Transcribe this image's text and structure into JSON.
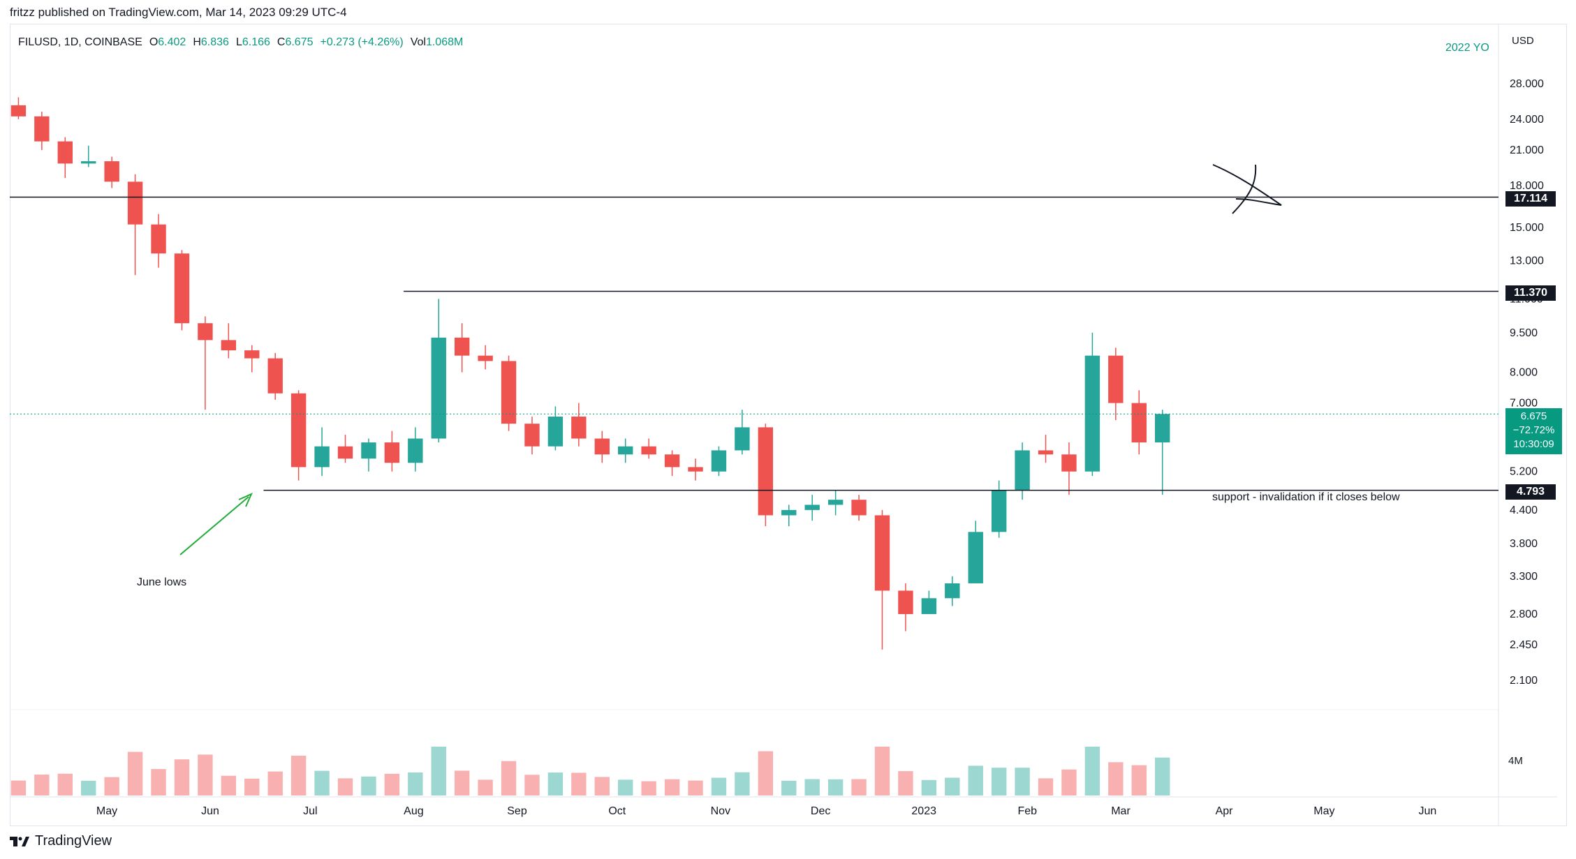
{
  "header": {
    "published": "fritzz published on TradingView.com, Mar 14, 2023 09:29 UTC-4"
  },
  "legend": {
    "symbol": "FILUSD, 1D, COINBASE",
    "o_label": "O",
    "o_value": "6.402",
    "h_label": "H",
    "h_value": "6.836",
    "l_label": "L",
    "l_value": "6.166",
    "c_label": "C",
    "c_value": "6.675",
    "change": "+0.273 (+4.26%)",
    "vol_label": "Vol",
    "vol_value": "1.068M"
  },
  "year_label": "2022 YO",
  "currency": "USD",
  "price_badge": {
    "price": "6.675",
    "change": "−72.72%",
    "countdown": "10:30:09"
  },
  "levels": [
    {
      "value": "17.114",
      "price": 17.114
    },
    {
      "value": "11.370",
      "price": 11.37
    },
    {
      "value": "4.793",
      "price": 4.793
    }
  ],
  "annotations": {
    "june_lows": "June lows",
    "support": "support - invalidation if it closes below"
  },
  "footer": {
    "brand": "TradingView"
  },
  "colors": {
    "up": "#26a69a",
    "down": "#ef5350",
    "accent": "#089981",
    "level": "#131722",
    "arrow": "#22ab3a"
  },
  "chart_data": {
    "type": "candlestick",
    "title": "FILUSD, 1D, COINBASE",
    "scale": "log",
    "y_ticks": [
      "28.000",
      "24.000",
      "21.000",
      "18.000",
      "15.000",
      "13.000",
      "11.000",
      "9.500",
      "8.000",
      "7.000",
      "5.200",
      "4.400",
      "3.800",
      "3.300",
      "2.800",
      "2.450",
      "2.100"
    ],
    "volume_tick": "4M",
    "x_ticks": [
      "Apr",
      "May",
      "Jun",
      "Jul",
      "Aug",
      "Sep",
      "Oct",
      "Nov",
      "Dec",
      "2023",
      "Feb",
      "Mar",
      "Apr",
      "May",
      "Jun"
    ],
    "last_close": 6.675,
    "ohlc_weekly": [
      {
        "date": "2022-04-01",
        "o": 25.5,
        "h": 26.4,
        "l": 24.0,
        "c": 24.3
      },
      {
        "date": "2022-04-08",
        "o": 24.3,
        "h": 24.8,
        "l": 21.0,
        "c": 21.8
      },
      {
        "date": "2022-04-15",
        "o": 21.8,
        "h": 22.2,
        "l": 18.6,
        "c": 19.8
      },
      {
        "date": "2022-04-22",
        "o": 19.8,
        "h": 21.4,
        "l": 19.5,
        "c": 20.0
      },
      {
        "date": "2022-04-29",
        "o": 20.0,
        "h": 20.4,
        "l": 17.8,
        "c": 18.3
      },
      {
        "date": "2022-05-06",
        "o": 18.3,
        "h": 18.9,
        "l": 12.2,
        "c": 15.2
      },
      {
        "date": "2022-05-13",
        "o": 15.2,
        "h": 15.9,
        "l": 12.6,
        "c": 13.4
      },
      {
        "date": "2022-05-20",
        "o": 13.4,
        "h": 13.6,
        "l": 9.6,
        "c": 9.9
      },
      {
        "date": "2022-05-27",
        "o": 9.9,
        "h": 10.2,
        "l": 6.8,
        "c": 9.2
      },
      {
        "date": "2022-06-03",
        "o": 9.2,
        "h": 9.9,
        "l": 8.5,
        "c": 8.8
      },
      {
        "date": "2022-06-10",
        "o": 8.8,
        "h": 9.0,
        "l": 8.0,
        "c": 8.5
      },
      {
        "date": "2022-06-17",
        "o": 8.5,
        "h": 8.7,
        "l": 7.1,
        "c": 7.3
      },
      {
        "date": "2022-06-24",
        "o": 7.3,
        "h": 7.4,
        "l": 5.0,
        "c": 5.3
      },
      {
        "date": "2022-07-01",
        "o": 5.3,
        "h": 6.3,
        "l": 5.1,
        "c": 5.8
      },
      {
        "date": "2022-07-08",
        "o": 5.8,
        "h": 6.1,
        "l": 5.4,
        "c": 5.5
      },
      {
        "date": "2022-07-15",
        "o": 5.5,
        "h": 6.0,
        "l": 5.2,
        "c": 5.9
      },
      {
        "date": "2022-07-22",
        "o": 5.9,
        "h": 6.2,
        "l": 5.2,
        "c": 5.4
      },
      {
        "date": "2022-07-29",
        "o": 5.4,
        "h": 6.3,
        "l": 5.2,
        "c": 6.0
      },
      {
        "date": "2022-08-05",
        "o": 6.0,
        "h": 11.0,
        "l": 5.9,
        "c": 9.3
      },
      {
        "date": "2022-08-12",
        "o": 9.3,
        "h": 9.9,
        "l": 8.0,
        "c": 8.6
      },
      {
        "date": "2022-08-19",
        "o": 8.6,
        "h": 9.0,
        "l": 8.1,
        "c": 8.4
      },
      {
        "date": "2022-08-26",
        "o": 8.4,
        "h": 8.6,
        "l": 6.2,
        "c": 6.4
      },
      {
        "date": "2022-09-02",
        "o": 6.4,
        "h": 6.6,
        "l": 5.6,
        "c": 5.8
      },
      {
        "date": "2022-09-09",
        "o": 5.8,
        "h": 6.9,
        "l": 5.7,
        "c": 6.6
      },
      {
        "date": "2022-09-16",
        "o": 6.6,
        "h": 7.0,
        "l": 5.8,
        "c": 6.0
      },
      {
        "date": "2022-09-23",
        "o": 6.0,
        "h": 6.2,
        "l": 5.4,
        "c": 5.6
      },
      {
        "date": "2022-09-30",
        "o": 5.6,
        "h": 6.0,
        "l": 5.4,
        "c": 5.8
      },
      {
        "date": "2022-10-07",
        "o": 5.8,
        "h": 6.0,
        "l": 5.5,
        "c": 5.6
      },
      {
        "date": "2022-10-14",
        "o": 5.6,
        "h": 5.7,
        "l": 5.1,
        "c": 5.3
      },
      {
        "date": "2022-10-21",
        "o": 5.3,
        "h": 5.5,
        "l": 5.0,
        "c": 5.2
      },
      {
        "date": "2022-10-28",
        "o": 5.2,
        "h": 5.8,
        "l": 5.1,
        "c": 5.7
      },
      {
        "date": "2022-11-04",
        "o": 5.7,
        "h": 6.8,
        "l": 5.6,
        "c": 6.3
      },
      {
        "date": "2022-11-11",
        "o": 6.3,
        "h": 6.4,
        "l": 4.1,
        "c": 4.3
      },
      {
        "date": "2022-11-18",
        "o": 4.3,
        "h": 4.5,
        "l": 4.1,
        "c": 4.4
      },
      {
        "date": "2022-11-25",
        "o": 4.4,
        "h": 4.7,
        "l": 4.2,
        "c": 4.5
      },
      {
        "date": "2022-12-02",
        "o": 4.5,
        "h": 4.8,
        "l": 4.3,
        "c": 4.6
      },
      {
        "date": "2022-12-09",
        "o": 4.6,
        "h": 4.7,
        "l": 4.2,
        "c": 4.3
      },
      {
        "date": "2022-12-16",
        "o": 4.3,
        "h": 4.4,
        "l": 2.4,
        "c": 3.1
      },
      {
        "date": "2022-12-23",
        "o": 3.1,
        "h": 3.2,
        "l": 2.6,
        "c": 2.8
      },
      {
        "date": "2022-12-30",
        "o": 2.8,
        "h": 3.1,
        "l": 2.8,
        "c": 3.0
      },
      {
        "date": "2023-01-06",
        "o": 3.0,
        "h": 3.3,
        "l": 2.9,
        "c": 3.2
      },
      {
        "date": "2023-01-13",
        "o": 3.2,
        "h": 4.2,
        "l": 3.2,
        "c": 4.0
      },
      {
        "date": "2023-01-20",
        "o": 4.0,
        "h": 5.0,
        "l": 3.9,
        "c": 4.8
      },
      {
        "date": "2023-01-27",
        "o": 4.8,
        "h": 5.9,
        "l": 4.6,
        "c": 5.7
      },
      {
        "date": "2023-02-03",
        "o": 5.7,
        "h": 6.1,
        "l": 5.4,
        "c": 5.6
      },
      {
        "date": "2023-02-10",
        "o": 5.6,
        "h": 5.9,
        "l": 4.7,
        "c": 5.2
      },
      {
        "date": "2023-02-17",
        "o": 5.2,
        "h": 9.5,
        "l": 5.1,
        "c": 8.6
      },
      {
        "date": "2023-02-24",
        "o": 8.6,
        "h": 8.9,
        "l": 6.5,
        "c": 7.0
      },
      {
        "date": "2023-03-03",
        "o": 7.0,
        "h": 7.4,
        "l": 5.6,
        "c": 5.9
      },
      {
        "date": "2023-03-10",
        "o": 5.9,
        "h": 6.8,
        "l": 4.7,
        "c": 6.675
      }
    ]
  }
}
